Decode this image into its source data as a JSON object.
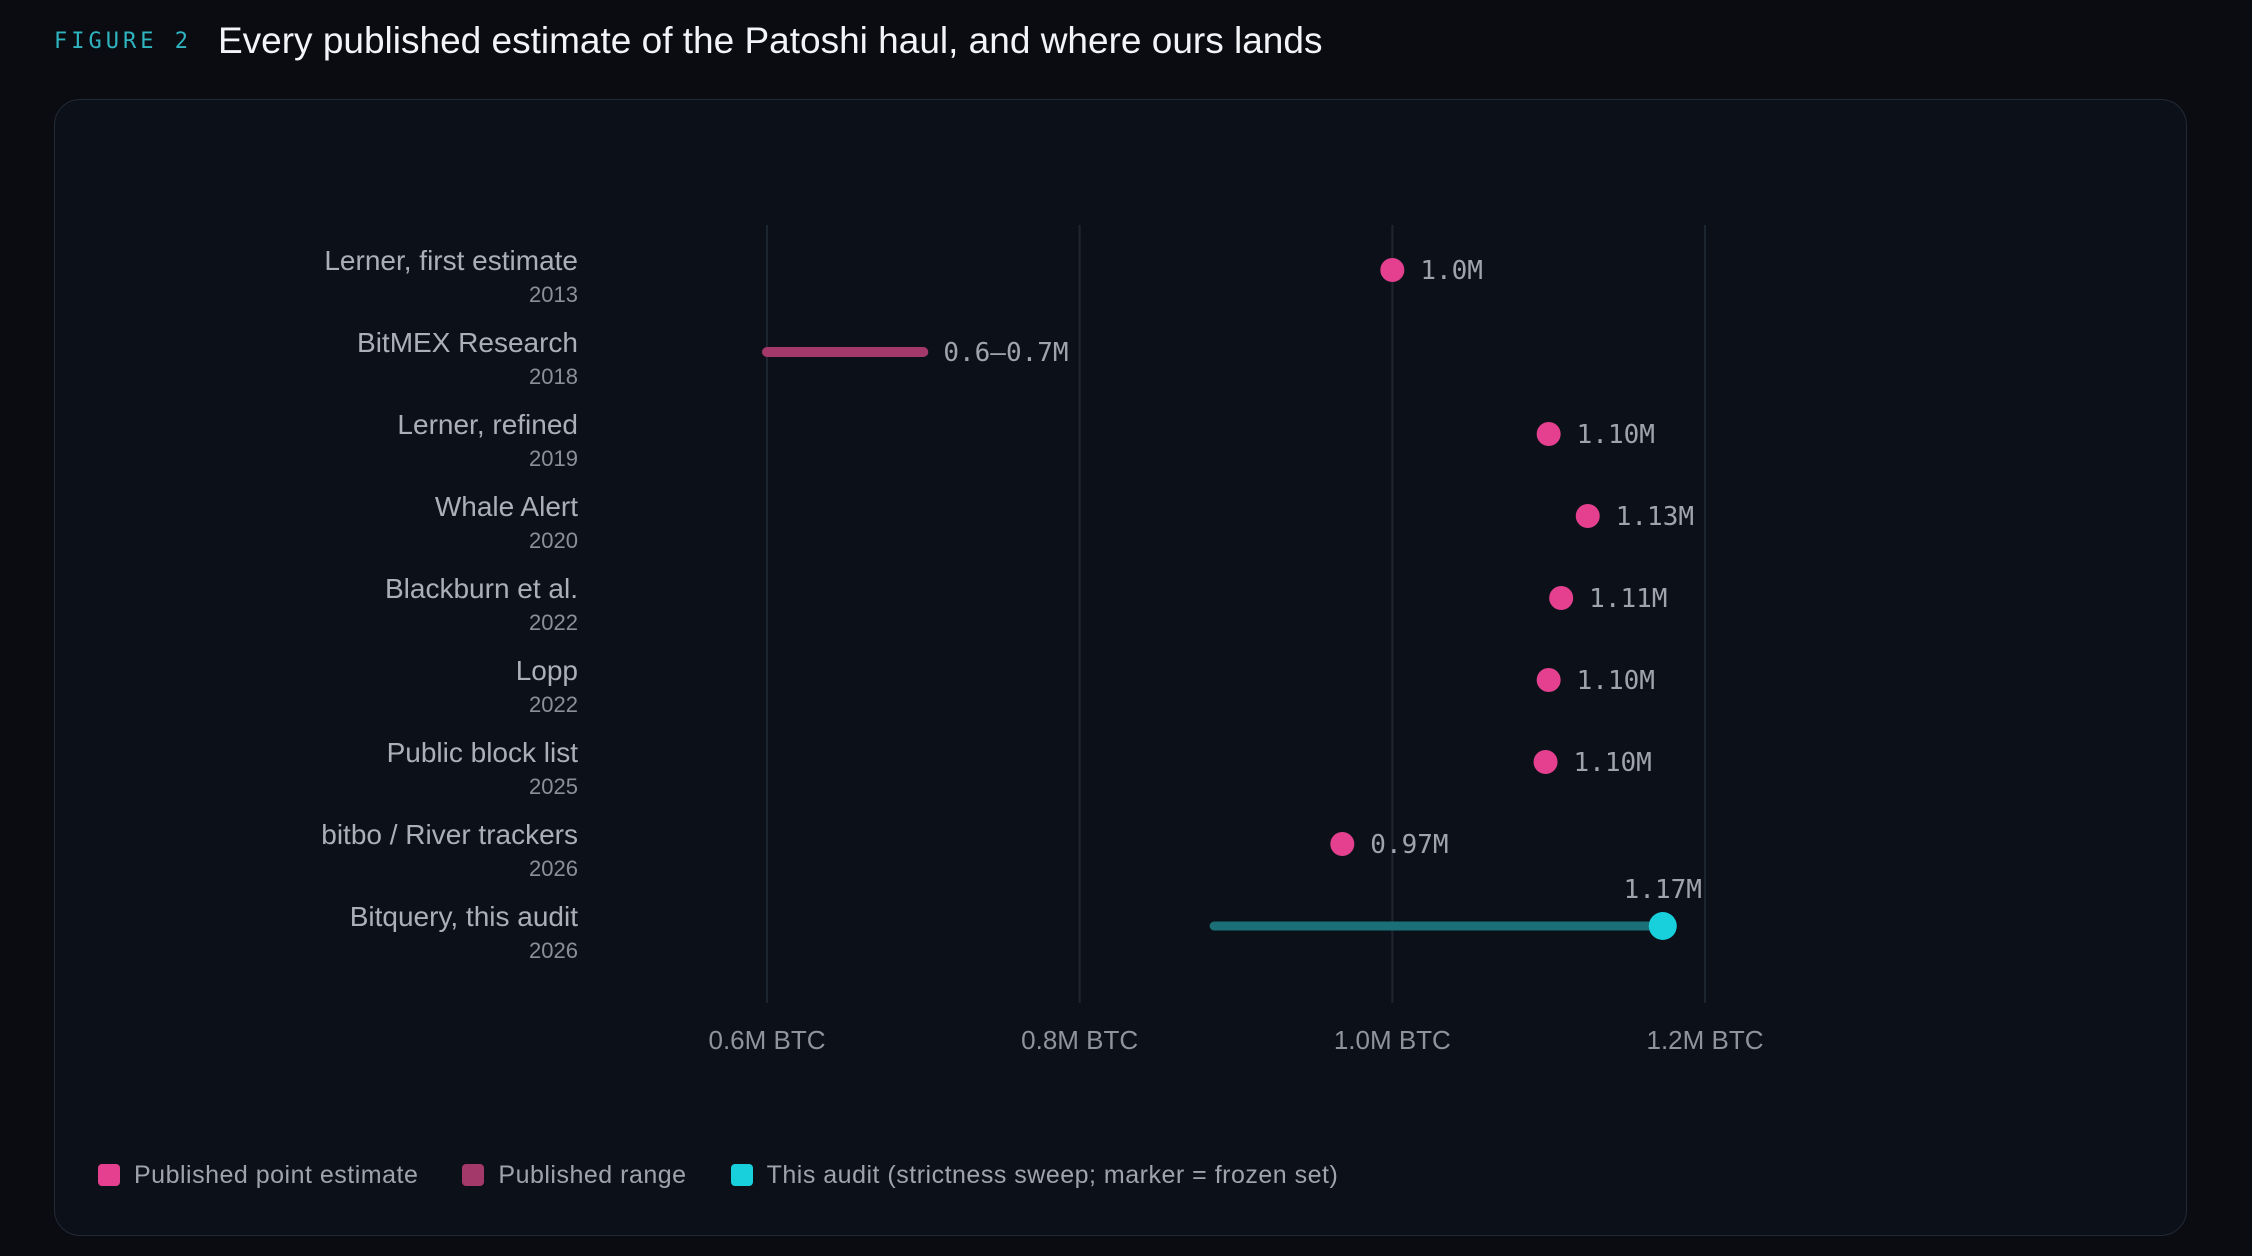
{
  "header": {
    "figure_label": "FIGURE 2",
    "title": "Every published estimate of the Patoshi haul, and where ours lands"
  },
  "colors": {
    "point": "#e5408f",
    "range": "#a3386a",
    "audit_marker": "#17d0dc",
    "audit_bar": "#1a7076",
    "grid": "#1d2530"
  },
  "legend": {
    "point_label": "Published point estimate",
    "range_label": "Published range",
    "audit_label": "This audit (strictness sweep; marker = frozen set)"
  },
  "chart_data": {
    "type": "dot-range",
    "title": "Every published estimate of the Patoshi haul, and where ours lands",
    "xlim": [
      0.6,
      1.2
    ],
    "x_unit": "M BTC",
    "x_ticks": [
      {
        "value": 0.6,
        "label": "0.6M BTC"
      },
      {
        "value": 0.8,
        "label": "0.8M BTC"
      },
      {
        "value": 1.0,
        "label": "1.0M BTC"
      },
      {
        "value": 1.2,
        "label": "1.2M BTC"
      }
    ],
    "grid": "vertical",
    "legend_position": "bottom-left",
    "rows": [
      {
        "label": "Lerner, first estimate",
        "year": "2013",
        "kind": "point",
        "value": 1.0,
        "value_label": "1.0M"
      },
      {
        "label": "BitMEX Research",
        "year": "2018",
        "kind": "range",
        "low": 0.6,
        "high": 0.7,
        "value_label": "0.6–0.7M"
      },
      {
        "label": "Lerner, refined",
        "year": "2019",
        "kind": "point",
        "value": 1.1,
        "value_label": "1.10M"
      },
      {
        "label": "Whale Alert",
        "year": "2020",
        "kind": "point",
        "value": 1.125,
        "value_label": "1.13M"
      },
      {
        "label": "Blackburn et al.",
        "year": "2022",
        "kind": "point",
        "value": 1.108,
        "value_label": "1.11M"
      },
      {
        "label": "Lopp",
        "year": "2022",
        "kind": "point",
        "value": 1.1,
        "value_label": "1.10M"
      },
      {
        "label": "Public block list",
        "year": "2025",
        "kind": "point",
        "value": 1.098,
        "value_label": "1.10M"
      },
      {
        "label": "bitbo / River trackers",
        "year": "2026",
        "kind": "point",
        "value": 0.968,
        "value_label": "0.97M"
      },
      {
        "label": "Bitquery, this audit",
        "year": "2026",
        "kind": "audit",
        "low": 0.886,
        "high": 1.173,
        "value": 1.173,
        "value_label": "1.17M"
      }
    ]
  }
}
